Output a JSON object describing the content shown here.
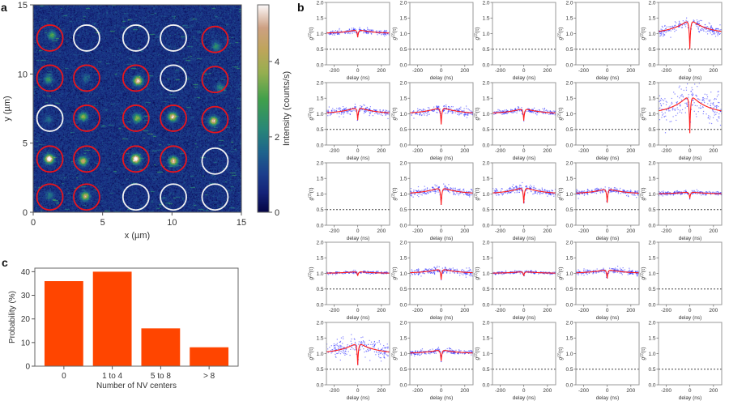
{
  "chart_data": [
    {
      "panel": "a",
      "type": "heatmap",
      "xlabel": "x (µm)",
      "ylabel": "y (µm)",
      "xlim": [
        0,
        15
      ],
      "ylim": [
        0,
        15
      ],
      "xticks": [
        "0",
        "5",
        "10",
        "15"
      ],
      "yticks": [
        "0",
        "5",
        "10",
        "15"
      ],
      "colorbar": {
        "label": "Intensity (counts/s)",
        "ticks": [
          "0",
          "2",
          "4"
        ],
        "range": [
          0,
          5.5
        ]
      },
      "background_level": 0.75,
      "circle_colors": {
        "red": "#e8141c",
        "white": "#f2f2f2"
      },
      "circles": [
        {
          "x": 1.2,
          "y": 12.6,
          "color": "red"
        },
        {
          "x": 3.85,
          "y": 12.6,
          "color": "white"
        },
        {
          "x": 7.4,
          "y": 12.6,
          "color": "white"
        },
        {
          "x": 10.1,
          "y": 12.6,
          "color": "white"
        },
        {
          "x": 13.1,
          "y": 12.5,
          "color": "red"
        },
        {
          "x": 1.2,
          "y": 9.7,
          "color": "red"
        },
        {
          "x": 3.85,
          "y": 9.7,
          "color": "red"
        },
        {
          "x": 7.4,
          "y": 9.7,
          "color": "red"
        },
        {
          "x": 10.1,
          "y": 9.7,
          "color": "white"
        },
        {
          "x": 13.1,
          "y": 9.6,
          "color": "red"
        },
        {
          "x": 1.2,
          "y": 6.8,
          "color": "white"
        },
        {
          "x": 3.85,
          "y": 6.8,
          "color": "red"
        },
        {
          "x": 7.4,
          "y": 6.8,
          "color": "red"
        },
        {
          "x": 10.1,
          "y": 6.8,
          "color": "red"
        },
        {
          "x": 13.1,
          "y": 6.7,
          "color": "red"
        },
        {
          "x": 1.2,
          "y": 3.85,
          "color": "red"
        },
        {
          "x": 3.85,
          "y": 3.85,
          "color": "red"
        },
        {
          "x": 7.4,
          "y": 3.85,
          "color": "red"
        },
        {
          "x": 10.1,
          "y": 3.85,
          "color": "red"
        },
        {
          "x": 13.1,
          "y": 3.7,
          "color": "white"
        },
        {
          "x": 1.2,
          "y": 1.1,
          "color": "red"
        },
        {
          "x": 3.85,
          "y": 1.1,
          "color": "red"
        },
        {
          "x": 7.4,
          "y": 1.1,
          "color": "white"
        },
        {
          "x": 10.1,
          "y": 1.1,
          "color": "white"
        },
        {
          "x": 13.1,
          "y": 1.1,
          "color": "white"
        }
      ],
      "spots": [
        {
          "x": 1.35,
          "y": 12.8,
          "intensity": 2.3
        },
        {
          "x": 13.2,
          "y": 12.0,
          "intensity": 1.8
        },
        {
          "x": 1.1,
          "y": 9.6,
          "intensity": 2.0
        },
        {
          "x": 3.8,
          "y": 9.7,
          "intensity": 1.0
        },
        {
          "x": 7.55,
          "y": 9.5,
          "intensity": 5.0
        },
        {
          "x": 13.5,
          "y": 9.0,
          "intensity": 1.5
        },
        {
          "x": 1.1,
          "y": 6.7,
          "intensity": 1.0
        },
        {
          "x": 3.6,
          "y": 6.9,
          "intensity": 3.0
        },
        {
          "x": 7.5,
          "y": 6.8,
          "intensity": 3.2
        },
        {
          "x": 10.05,
          "y": 6.9,
          "intensity": 4.6
        },
        {
          "x": 13.0,
          "y": 6.6,
          "intensity": 4.6
        },
        {
          "x": 1.15,
          "y": 3.85,
          "intensity": 6.0
        },
        {
          "x": 3.6,
          "y": 3.7,
          "intensity": 4.0
        },
        {
          "x": 7.4,
          "y": 3.85,
          "intensity": 6.0
        },
        {
          "x": 10.1,
          "y": 3.7,
          "intensity": 4.6
        },
        {
          "x": 1.2,
          "y": 1.2,
          "intensity": 1.2
        },
        {
          "x": 3.75,
          "y": 1.15,
          "intensity": 4.0
        }
      ]
    },
    {
      "panel": "b",
      "type": "scatter",
      "xlabel": "delay (ns)",
      "ylabel_base": "g",
      "ylabel_sup": "(2)",
      "ylabel_arg": "(τ)",
      "xlim": [
        -265,
        270
      ],
      "ylim": [
        0,
        2
      ],
      "xticks": [
        "-200",
        "0",
        "200"
      ],
      "yticks": [
        "0.0",
        "0.5",
        "1.0",
        "1.5",
        "2.0"
      ],
      "reference_line": 0.5,
      "colors": {
        "points": "#1f1fff",
        "fit": "#ff1a1a",
        "reference": "#444444"
      },
      "panels": [
        {
          "row": 1,
          "col": 1,
          "has_data": true,
          "g2_zero": 0.88,
          "peak": 1.13,
          "scatter_sd": 0.04
        },
        {
          "row": 1,
          "col": 2,
          "has_data": false
        },
        {
          "row": 1,
          "col": 3,
          "has_data": false
        },
        {
          "row": 1,
          "col": 4,
          "has_data": false
        },
        {
          "row": 1,
          "col": 5,
          "has_data": true,
          "g2_zero": 0.5,
          "peak": 1.48,
          "scatter_sd": 0.09
        },
        {
          "row": 2,
          "col": 1,
          "has_data": true,
          "g2_zero": 0.8,
          "peak": 1.22,
          "scatter_sd": 0.06
        },
        {
          "row": 2,
          "col": 2,
          "has_data": true,
          "g2_zero": 0.66,
          "peak": 1.22,
          "scatter_sd": 0.07
        },
        {
          "row": 2,
          "col": 3,
          "has_data": true,
          "g2_zero": 0.78,
          "peak": 1.18,
          "scatter_sd": 0.04
        },
        {
          "row": 2,
          "col": 4,
          "has_data": false
        },
        {
          "row": 2,
          "col": 5,
          "has_data": true,
          "g2_zero": 0.38,
          "peak": 1.65,
          "scatter_sd": 0.28
        },
        {
          "row": 3,
          "col": 1,
          "has_data": false
        },
        {
          "row": 3,
          "col": 2,
          "has_data": true,
          "g2_zero": 0.65,
          "peak": 1.22,
          "scatter_sd": 0.06
        },
        {
          "row": 3,
          "col": 3,
          "has_data": true,
          "g2_zero": 0.7,
          "peak": 1.23,
          "scatter_sd": 0.06
        },
        {
          "row": 3,
          "col": 4,
          "has_data": true,
          "g2_zero": 0.72,
          "peak": 1.18,
          "scatter_sd": 0.045
        },
        {
          "row": 3,
          "col": 5,
          "has_data": true,
          "g2_zero": 0.86,
          "peak": 1.07,
          "scatter_sd": 0.03
        },
        {
          "row": 4,
          "col": 1,
          "has_data": true,
          "g2_zero": 0.92,
          "peak": 1.06,
          "scatter_sd": 0.02
        },
        {
          "row": 4,
          "col": 2,
          "has_data": true,
          "g2_zero": 0.8,
          "peak": 1.15,
          "scatter_sd": 0.05
        },
        {
          "row": 4,
          "col": 3,
          "has_data": true,
          "g2_zero": 0.92,
          "peak": 1.06,
          "scatter_sd": 0.02
        },
        {
          "row": 4,
          "col": 4,
          "has_data": true,
          "g2_zero": 0.84,
          "peak": 1.13,
          "scatter_sd": 0.045
        },
        {
          "row": 4,
          "col": 5,
          "has_data": false
        },
        {
          "row": 5,
          "col": 1,
          "has_data": true,
          "g2_zero": 0.63,
          "peak": 1.37,
          "scatter_sd": 0.14
        },
        {
          "row": 5,
          "col": 2,
          "has_data": true,
          "g2_zero": 0.76,
          "peak": 1.13,
          "scatter_sd": 0.04
        },
        {
          "row": 5,
          "col": 3,
          "has_data": false
        },
        {
          "row": 5,
          "col": 4,
          "has_data": false
        },
        {
          "row": 5,
          "col": 5,
          "has_data": false
        }
      ]
    },
    {
      "panel": "c",
      "type": "bar",
      "categories": [
        "0",
        "1 to 4",
        "5 to 8",
        "> 8"
      ],
      "values": [
        36,
        40,
        16,
        8
      ],
      "xlabel": "Number of NV centers",
      "ylabel": "Probability (%)",
      "ylim": [
        0,
        41.5
      ],
      "yticks": [
        "0",
        "10",
        "20",
        "30",
        "40"
      ],
      "color": "#ff4500"
    }
  ]
}
